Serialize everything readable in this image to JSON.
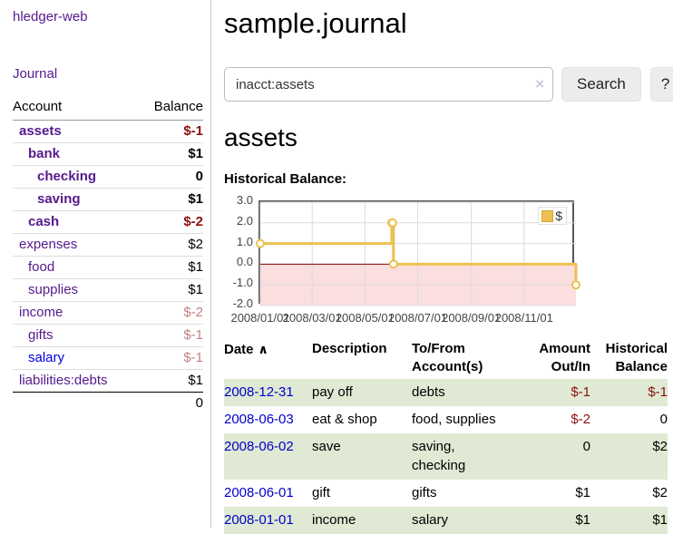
{
  "app": {
    "title": "hledger-web"
  },
  "sidebar": {
    "journal_label": "Journal",
    "accounts": {
      "header_account": "Account",
      "header_balance": "Balance",
      "rows": [
        {
          "name": "assets",
          "balance": "$-1",
          "name_class": "lvl1 bold",
          "balance_class": "bold neg"
        },
        {
          "name": "bank",
          "balance": "$1",
          "name_class": "lvl2 bold",
          "balance_class": "bold"
        },
        {
          "name": "checking",
          "balance": "0",
          "name_class": "lvl3 bold",
          "balance_class": "bold"
        },
        {
          "name": "saving",
          "balance": "$1",
          "name_class": "lvl3 bold",
          "balance_class": "bold"
        },
        {
          "name": "cash",
          "balance": "$-2",
          "name_class": "lvl2 bold",
          "balance_class": "bold neg"
        },
        {
          "name": "expenses",
          "balance": "$2",
          "name_class": "lvl1"
        },
        {
          "name": "food",
          "balance": "$1",
          "name_class": "lvl2"
        },
        {
          "name": "supplies",
          "balance": "$1",
          "name_class": "lvl2"
        },
        {
          "name": "income",
          "balance": "$-2",
          "name_class": "lvl1",
          "balance_class": "neg-faded"
        },
        {
          "name": "gifts",
          "balance": "$-1",
          "name_class": "lvl2",
          "balance_class": "neg-faded"
        },
        {
          "name": "salary",
          "balance": "$-1",
          "name_class": "lvl2",
          "link_class": "unvisited",
          "balance_class": "neg-faded"
        },
        {
          "name": "liabilities:debts",
          "balance": "$1",
          "name_class": "lvl1"
        }
      ],
      "total": "0"
    }
  },
  "main": {
    "title": "sample.journal",
    "search": {
      "value": "inacct:assets",
      "clear_icon": "×",
      "button_label": "Search",
      "help_label": "?"
    },
    "account_heading": "assets",
    "section_label": "Historical Balance:"
  },
  "chart_data": {
    "type": "line",
    "step": true,
    "title": "Historical Balance",
    "xlim": [
      "2008-01-01",
      "2008-12-31"
    ],
    "ylim": [
      -2,
      3
    ],
    "yticks": [
      3,
      2,
      1,
      0,
      -1,
      -2
    ],
    "xticks": [
      {
        "date": "2008-01-01",
        "label": "2008/01/01"
      },
      {
        "date": "2008-03-01",
        "label": "2008/03/01"
      },
      {
        "date": "2008-05-01",
        "label": "2008/05/01"
      },
      {
        "date": "2008-07-01",
        "label": "2008/07/01"
      },
      {
        "date": "2008-09-01",
        "label": "2008/09/01"
      },
      {
        "date": "2008-11-01",
        "label": "2008/11/01"
      }
    ],
    "series": [
      {
        "name": "$",
        "color": "#ecc052",
        "points": [
          [
            "2008-01-01",
            1
          ],
          [
            "2008-06-01",
            2
          ],
          [
            "2008-06-02",
            2
          ],
          [
            "2008-06-03",
            0
          ],
          [
            "2008-12-31",
            -1
          ]
        ]
      }
    ],
    "legend_position": "top-right",
    "grid": true,
    "colors": {
      "negative_region": "#fbdede",
      "zero_line": "#8b0000",
      "grid": "#dcdcdc"
    }
  },
  "register": {
    "headers": {
      "date": "Date",
      "sort_icon": "∧",
      "description": "Description",
      "accounts": "To/From Account(s)",
      "amount": "Amount Out/In",
      "balance": "Historical Balance"
    },
    "rows": [
      {
        "date": "2008-12-31",
        "description": "pay off",
        "accounts": "debts",
        "amount": "$-1",
        "balance": "$-1",
        "amount_class": "neg",
        "balance_class": "neg"
      },
      {
        "date": "2008-06-03",
        "description": "eat & shop",
        "accounts": "food, supplies",
        "amount": "$-2",
        "balance": "0",
        "amount_class": "neg"
      },
      {
        "date": "2008-06-02",
        "description": "save",
        "accounts": "saving, checking",
        "amount": "0",
        "balance": "$2"
      },
      {
        "date": "2008-06-01",
        "description": "gift",
        "accounts": "gifts",
        "amount": "$1",
        "balance": "$2"
      },
      {
        "date": "2008-01-01",
        "description": "income",
        "accounts": "salary",
        "amount": "$1",
        "balance": "$1"
      }
    ]
  }
}
